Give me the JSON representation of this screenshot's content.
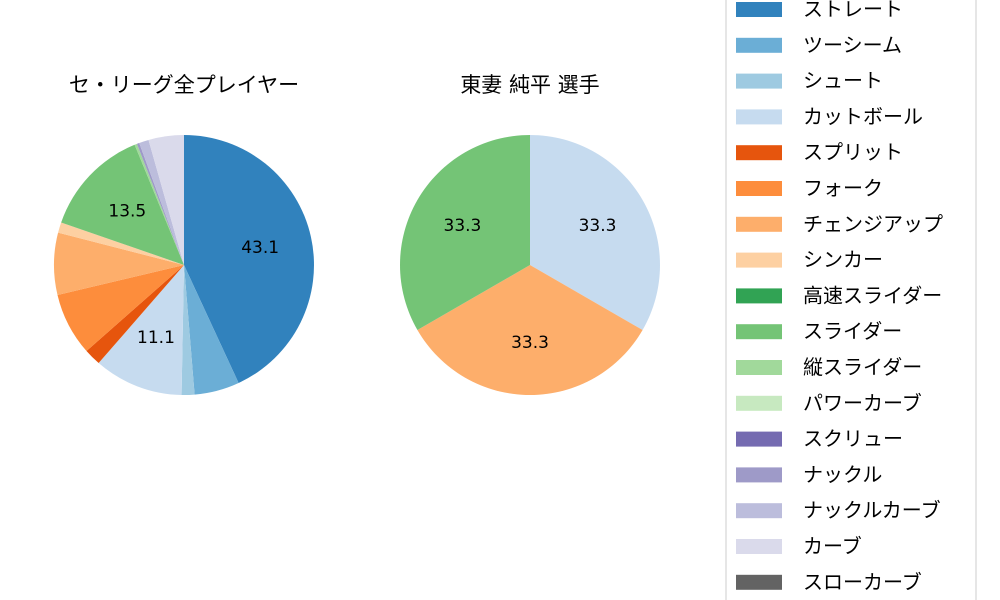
{
  "chart_data": [
    {
      "type": "pie",
      "title": "セ・リーグ全プレイヤー",
      "labels": [
        "ストレート",
        "ツーシーム",
        "シュート",
        "カットボール",
        "スプリット",
        "フォーク",
        "チェンジアップ",
        "シンカー",
        "高速スライダー",
        "スライダー",
        "縦スライダー",
        "パワーカーブ",
        "スクリュー",
        "ナックル",
        "ナックルカーブ",
        "カーブ",
        "スローカーブ"
      ],
      "values": [
        43.1,
        5.6,
        1.6,
        11.1,
        2.1,
        7.8,
        7.7,
        1.3,
        0.0,
        13.5,
        0.3,
        0.0,
        0.0,
        0.3,
        1.2,
        4.4,
        0.0
      ],
      "data_labels": [
        "43.1",
        "",
        "",
        "11.1",
        "",
        "",
        "",
        "",
        "",
        "13.5",
        "",
        "",
        "",
        "",
        "",
        "",
        ""
      ]
    },
    {
      "type": "pie",
      "title": "東妻 純平  選手",
      "labels": [
        "ストレート",
        "ツーシーム",
        "シュート",
        "カットボール",
        "スプリット",
        "フォーク",
        "チェンジアップ",
        "シンカー",
        "高速スライダー",
        "スライダー",
        "縦スライダー",
        "パワーカーブ",
        "スクリュー",
        "ナックル",
        "ナックルカーブ",
        "カーブ",
        "スローカーブ"
      ],
      "values": [
        0,
        0,
        0,
        33.3,
        0,
        0,
        33.3,
        0,
        0,
        33.3,
        0,
        0,
        0,
        0,
        0,
        0,
        0
      ],
      "data_labels": [
        "",
        "",
        "",
        "33.3",
        "",
        "",
        "33.3",
        "",
        "",
        "33.3",
        "",
        "",
        "",
        "",
        "",
        "",
        ""
      ]
    }
  ],
  "legend": {
    "placement": "right",
    "items": [
      {
        "label": "ストレート",
        "color": "#3182bd"
      },
      {
        "label": "ツーシーム",
        "color": "#6baed6"
      },
      {
        "label": "シュート",
        "color": "#9ecae1"
      },
      {
        "label": "カットボール",
        "color": "#c6dbef"
      },
      {
        "label": "スプリット",
        "color": "#e6550d"
      },
      {
        "label": "フォーク",
        "color": "#fd8d3c"
      },
      {
        "label": "チェンジアップ",
        "color": "#fdae6b"
      },
      {
        "label": "シンカー",
        "color": "#fdd0a2"
      },
      {
        "label": "高速スライダー",
        "color": "#31a354"
      },
      {
        "label": "スライダー",
        "color": "#74c476"
      },
      {
        "label": "縦スライダー",
        "color": "#a1d99b"
      },
      {
        "label": "パワーカーブ",
        "color": "#c7e9c0"
      },
      {
        "label": "スクリュー",
        "color": "#756bb1"
      },
      {
        "label": "ナックル",
        "color": "#9e9ac8"
      },
      {
        "label": "ナックルカーブ",
        "color": "#bcbddc"
      },
      {
        "label": "カーブ",
        "color": "#dadaeb"
      },
      {
        "label": "スローカーブ",
        "color": "#636363"
      }
    ]
  }
}
